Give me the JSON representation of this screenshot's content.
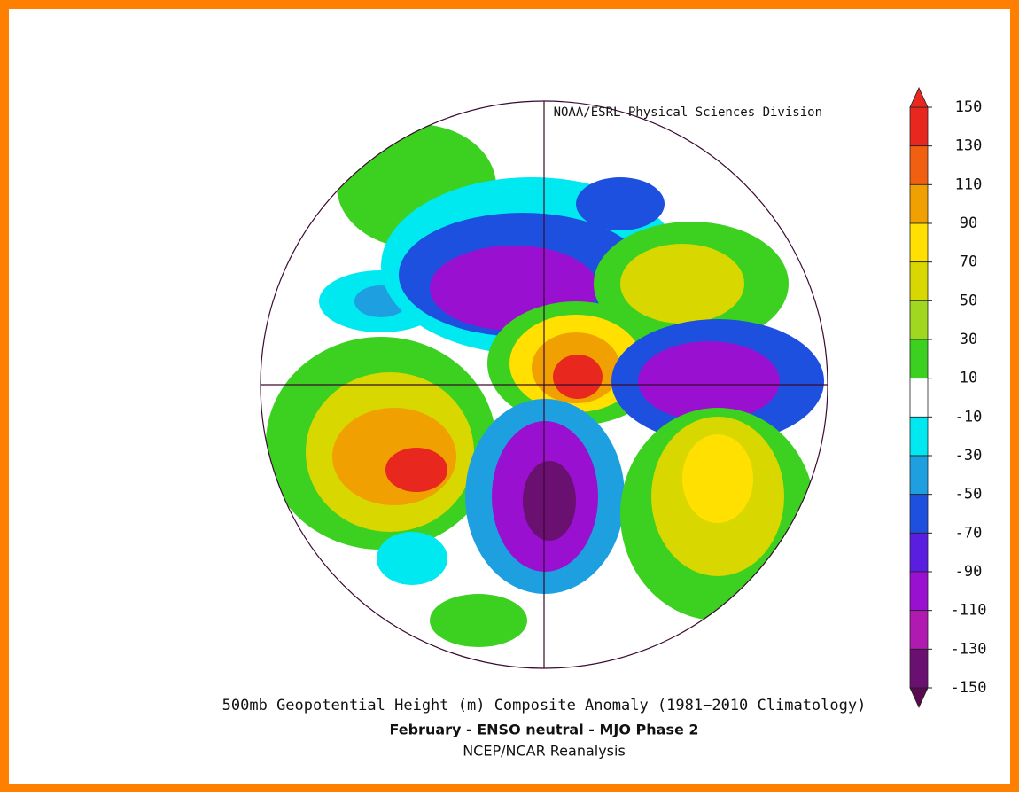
{
  "credit": "NOAA/ESRL Physical Sciences Division",
  "colorbar": {
    "ticks": [
      150,
      130,
      110,
      90,
      70,
      50,
      30,
      10,
      -10,
      -30,
      -50,
      -70,
      -90,
      -110,
      -130,
      -150
    ],
    "colors": [
      "#e8281e",
      "#f06010",
      "#f0a000",
      "#ffe000",
      "#d8d800",
      "#a0d820",
      "#3cd020",
      "#ffffff",
      "#00e8f0",
      "#1ea0e0",
      "#1e50e0",
      "#5a1ee0",
      "#9a10d0",
      "#b01ab0",
      "#6a1070"
    ],
    "over_color": "#e8281e",
    "under_color": "#5a0a50"
  },
  "title": "500mb Geopotential Height (m) Composite Anomaly (1981−2010 Climatology)",
  "subtitle": "February - ENSO neutral - MJO Phase 2",
  "source": "NCEP/NCAR Reanalysis"
}
